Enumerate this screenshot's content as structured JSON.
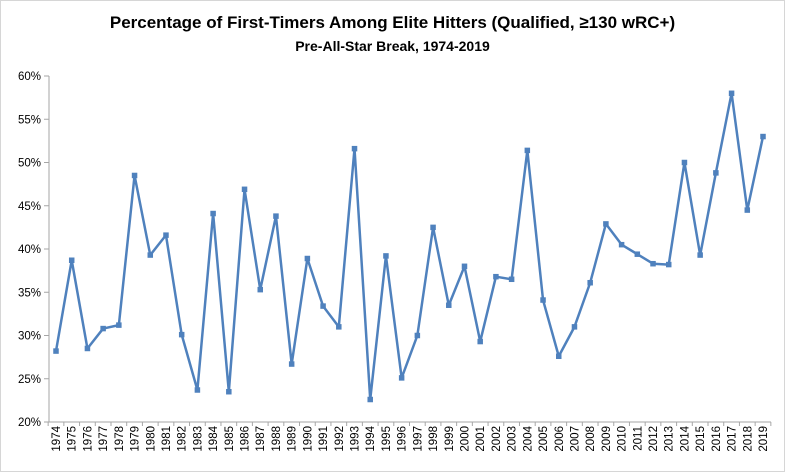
{
  "chart_data": {
    "type": "line",
    "title": "Percentage of First-Timers Among Elite Hitters (Qualified, ≥130 wRC+)",
    "subtitle": "Pre-All-Star Break, 1974-2019",
    "categories": [
      "1974",
      "1975",
      "1976",
      "1977",
      "1978",
      "1979",
      "1980",
      "1981",
      "1982",
      "1983",
      "1984",
      "1985",
      "1986",
      "1987",
      "1988",
      "1989",
      "1990",
      "1991",
      "1992",
      "1993",
      "1994",
      "1995",
      "1996",
      "1997",
      "1998",
      "1999",
      "2000",
      "2001",
      "2002",
      "2003",
      "2004",
      "2005",
      "2006",
      "2007",
      "2008",
      "2009",
      "2010",
      "2011",
      "2012",
      "2013",
      "2014",
      "2015",
      "2016",
      "2017",
      "2018",
      "2019"
    ],
    "series": [
      {
        "name": "Percentage of first-timers",
        "values": [
          28.2,
          38.7,
          28.5,
          30.8,
          31.2,
          48.5,
          39.3,
          41.6,
          30.1,
          23.7,
          44.1,
          23.5,
          46.9,
          35.3,
          43.8,
          26.7,
          38.9,
          33.4,
          31.0,
          51.6,
          22.6,
          39.2,
          25.1,
          30.0,
          42.5,
          33.5,
          38.0,
          29.3,
          36.8,
          36.5,
          51.4,
          34.1,
          27.6,
          31.0,
          36.1,
          42.9,
          40.5,
          39.4,
          38.3,
          38.2,
          50.0,
          39.3,
          48.8,
          58.0,
          44.5,
          53.0
        ]
      }
    ],
    "xlabel": "",
    "ylabel": "",
    "ylim": [
      20,
      60
    ],
    "y_tick_step": 5,
    "y_tick_labels": [
      "20%",
      "25%",
      "30%",
      "35%",
      "40%",
      "45%",
      "50%",
      "55%",
      "60%"
    ],
    "grid": false,
    "legend": "none",
    "line_color": "#4F81BD",
    "marker": "square",
    "axis_color": "#A6A6A6",
    "text_color": "#000000",
    "background": "#FFFFFF"
  }
}
